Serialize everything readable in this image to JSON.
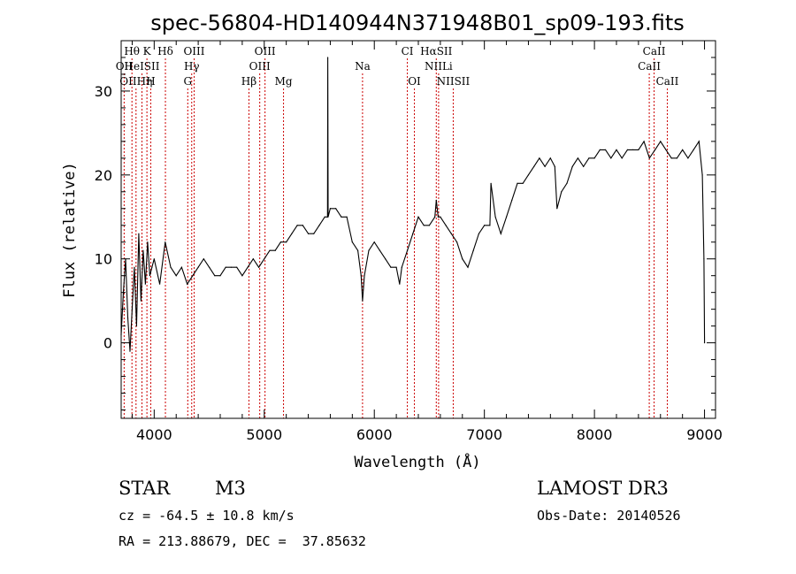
{
  "chart_data": {
    "type": "line",
    "title": "spec-56804-HD140944N371948B01_sp09-193.fits",
    "xlabel": "Wavelength (Å)",
    "ylabel": "Flux (relative)",
    "xlim": [
      3700,
      9100
    ],
    "ylim": [
      -9,
      36
    ],
    "xticks": [
      4000,
      5000,
      6000,
      7000,
      8000,
      9000
    ],
    "yticks": [
      0,
      10,
      20,
      30
    ],
    "grid": false,
    "series": [
      {
        "name": "flux",
        "x": [
          3700,
          3720,
          3740,
          3760,
          3780,
          3800,
          3820,
          3840,
          3860,
          3880,
          3900,
          3920,
          3940,
          3960,
          3980,
          4000,
          4050,
          4100,
          4150,
          4200,
          4250,
          4300,
          4350,
          4400,
          4450,
          4500,
          4550,
          4600,
          4650,
          4700,
          4750,
          4800,
          4850,
          4900,
          4950,
          5000,
          5050,
          5100,
          5150,
          5200,
          5250,
          5300,
          5350,
          5400,
          5450,
          5500,
          5550,
          5575,
          5577,
          5580,
          5600,
          5650,
          5700,
          5750,
          5800,
          5850,
          5880,
          5893,
          5910,
          5950,
          6000,
          6050,
          6100,
          6150,
          6200,
          6230,
          6250,
          6300,
          6350,
          6400,
          6450,
          6500,
          6550,
          6563,
          6580,
          6600,
          6650,
          6700,
          6750,
          6800,
          6850,
          6900,
          6950,
          7000,
          7050,
          7060,
          7100,
          7150,
          7200,
          7250,
          7300,
          7350,
          7400,
          7450,
          7500,
          7550,
          7600,
          7640,
          7660,
          7700,
          7750,
          7800,
          7850,
          7900,
          7950,
          8000,
          8050,
          8100,
          8150,
          8200,
          8250,
          8300,
          8350,
          8400,
          8450,
          8500,
          8550,
          8600,
          8650,
          8700,
          8750,
          8800,
          8850,
          8900,
          8950,
          8980,
          8995,
          9000
        ],
        "values": [
          1,
          6,
          10,
          3,
          -1,
          4,
          9,
          2,
          13,
          5,
          11,
          7,
          12,
          8,
          9,
          10,
          7,
          12,
          9,
          8,
          9,
          7,
          8,
          9,
          10,
          9,
          8,
          8,
          9,
          9,
          9,
          8,
          9,
          10,
          9,
          10,
          11,
          11,
          12,
          12,
          13,
          14,
          14,
          13,
          13,
          14,
          15,
          15,
          34,
          15,
          16,
          16,
          15,
          15,
          12,
          11,
          8,
          5,
          8,
          11,
          12,
          11,
          10,
          9,
          9,
          7,
          9,
          11,
          13,
          15,
          14,
          14,
          15,
          17,
          15,
          15,
          14,
          13,
          12,
          10,
          9,
          11,
          13,
          14,
          14,
          19,
          15,
          13,
          15,
          17,
          19,
          19,
          20,
          21,
          22,
          21,
          22,
          21,
          16,
          18,
          19,
          21,
          22,
          21,
          22,
          22,
          23,
          23,
          22,
          23,
          22,
          23,
          23,
          23,
          24,
          22,
          23,
          24,
          23,
          22,
          22,
          23,
          22,
          23,
          24,
          20,
          10,
          0
        ]
      }
    ],
    "annotations": [
      {
        "label": "Hθ",
        "x": 3798,
        "tier": 1
      },
      {
        "label": "K",
        "x": 3934,
        "tier": 1
      },
      {
        "label": "Hδ",
        "x": 4102,
        "tier": 1
      },
      {
        "label": "OIII",
        "x": 4363,
        "tier": 1
      },
      {
        "label": "OIII",
        "x": 5007,
        "tier": 1
      },
      {
        "label": "CI",
        "x": 6300,
        "tier": 1
      },
      {
        "label": "HαSII",
        "x": 6563,
        "tier": 1
      },
      {
        "label": "CaII",
        "x": 8542,
        "tier": 1
      },
      {
        "label": "OII",
        "x": 3727,
        "tier": 2
      },
      {
        "label": "HeISII",
        "x": 3889,
        "tier": 2
      },
      {
        "label": "Hγ",
        "x": 4341,
        "tier": 2
      },
      {
        "label": "OIII",
        "x": 4959,
        "tier": 2
      },
      {
        "label": "Na",
        "x": 5893,
        "tier": 2
      },
      {
        "label": "NIILi",
        "x": 6584,
        "tier": 2
      },
      {
        "label": "CaII",
        "x": 8498,
        "tier": 2
      },
      {
        "label": "OIIHη",
        "x": 3835,
        "tier": 3
      },
      {
        "label": "H",
        "x": 3969,
        "tier": 3
      },
      {
        "label": "G",
        "x": 4305,
        "tier": 3
      },
      {
        "label": "Hβ",
        "x": 4861,
        "tier": 3
      },
      {
        "label": "Mg",
        "x": 5175,
        "tier": 3
      },
      {
        "label": "OI",
        "x": 6364,
        "tier": 3
      },
      {
        "label": "NIISII",
        "x": 6717,
        "tier": 3
      },
      {
        "label": "CaII",
        "x": 8662,
        "tier": 3
      }
    ],
    "line_colors": {
      "flux": "#000000",
      "marker": "#cc0000",
      "axis": "#000000"
    }
  },
  "footer": {
    "object_type": "STAR",
    "subclass": "M3",
    "survey": "LAMOST DR3",
    "redshift": "cz = -64.5 ± 10.8 km/s",
    "obs_date": "Obs-Date: 20140526",
    "coords": "RA = 213.88679, DEC =  37.85632"
  }
}
